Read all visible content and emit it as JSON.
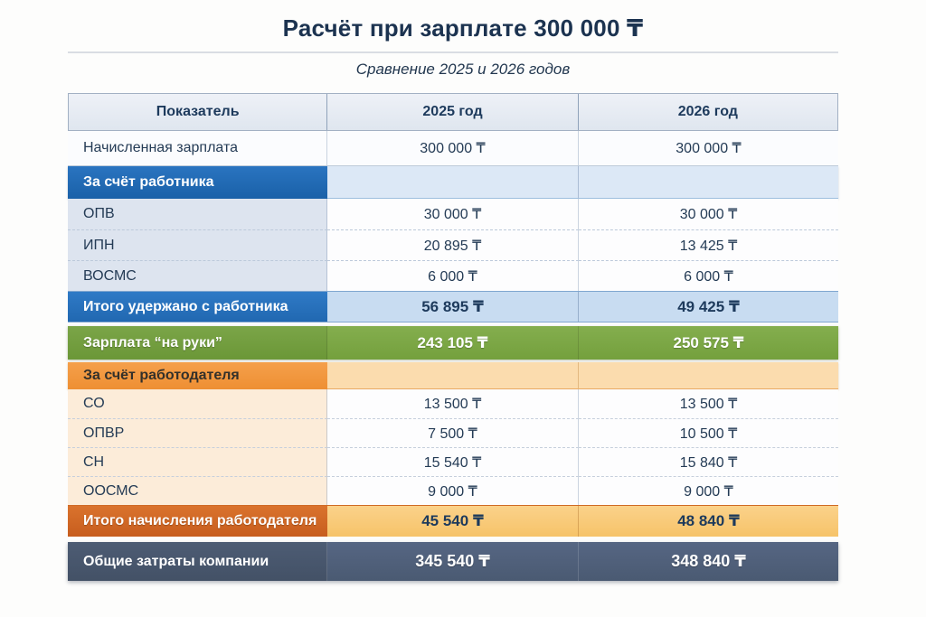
{
  "page": {
    "title": "Расчёт при зарплате 300 000 ₸",
    "subtitle": "Сравнение 2025 и 2026 годов"
  },
  "table": {
    "columns": [
      "Показатель",
      "2025 год",
      "2026 год"
    ],
    "rows": [
      {
        "type": "data-plain",
        "label": "Начисленная зарплата",
        "y2025": "300 000 ₸",
        "y2026": "300 000 ₸"
      },
      {
        "type": "section-blue",
        "label": "За счёт работника",
        "y2025": "",
        "y2026": ""
      },
      {
        "type": "data-blue",
        "label": "ОПВ",
        "y2025": "30 000 ₸",
        "y2026": "30 000 ₸"
      },
      {
        "type": "data-blue",
        "label": "ИПН",
        "y2025": "20 895 ₸",
        "y2026": "13 425 ₸"
      },
      {
        "type": "data-blue",
        "label": "ВОСМС",
        "y2025": "6 000 ₸",
        "y2026": "6 000 ₸"
      },
      {
        "type": "total-blue",
        "label": "Итого удержано с работника",
        "y2025": "56 895 ₸",
        "y2026": "49 425 ₸"
      },
      {
        "type": "highlight-green",
        "label": "Зарплата “на руки”",
        "y2025": "243 105 ₸",
        "y2026": "250 575 ₸"
      },
      {
        "type": "section-orange",
        "label": "За счёт работодателя",
        "y2025": "",
        "y2026": ""
      },
      {
        "type": "data-orange",
        "label": "СО",
        "y2025": "13 500 ₸",
        "y2026": "13 500 ₸"
      },
      {
        "type": "data-orange",
        "label": "ОПВР",
        "y2025": "7 500 ₸",
        "y2026": "10 500 ₸"
      },
      {
        "type": "data-orange",
        "label": "СН",
        "y2025": "15 540 ₸",
        "y2026": "15 840 ₸"
      },
      {
        "type": "data-orange",
        "label": "ООСМС",
        "y2025": "9 000 ₸",
        "y2026": "9 000 ₸"
      },
      {
        "type": "total-orange",
        "label": "Итого начисления работодателя",
        "y2025": "45 540 ₸",
        "y2026": "48 840 ₸"
      },
      {
        "type": "grand-total",
        "label": "Общие затраты компании",
        "y2025": "345 540 ₸",
        "y2026": "348 840 ₸"
      }
    ]
  },
  "palette": {
    "title_navy": "#1c3350",
    "employee_blue": "#1d6ab2",
    "employee_total_blue_bg": "#c8dcf1",
    "net_salary_green": "#74a03d",
    "employer_orange": "#ee8f33",
    "employer_total_orange": "#c75d1e",
    "employer_total_values_bg": "#f6c369",
    "grand_total_slate": "#4a5a72",
    "header_bg": "#e4eaf2",
    "currency_symbol": "₸"
  }
}
